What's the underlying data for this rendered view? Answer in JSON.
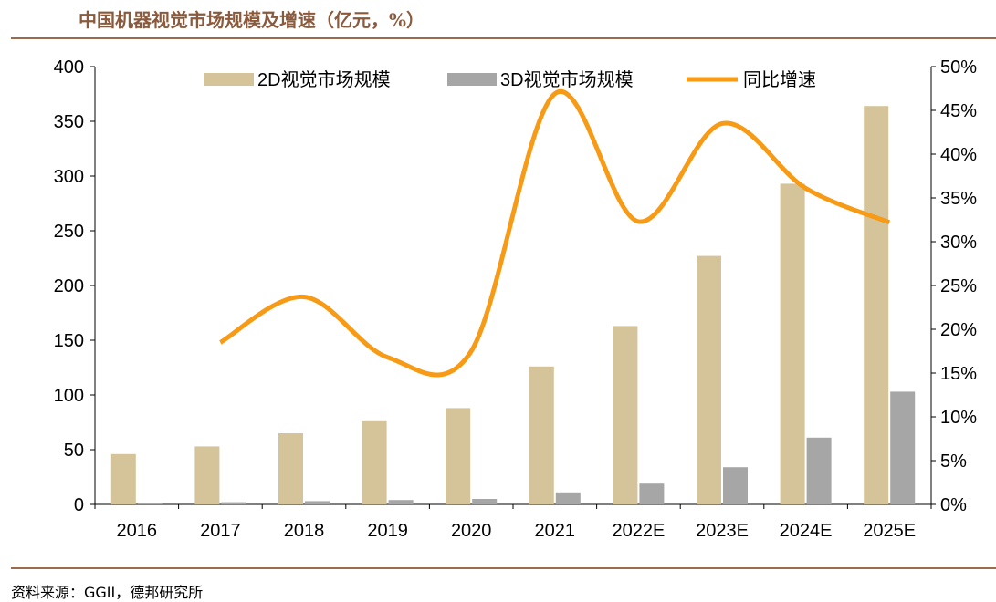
{
  "page": {
    "title": "中国机器视觉市场规模及增速（亿元，%）",
    "source": "资料来源：GGII，德邦研究所"
  },
  "colors": {
    "bar2d": "#D5C49A",
    "bar3d": "#A6A6A6",
    "growth": "#F79A15",
    "title": "#8B5A3C",
    "rule": "#9B6B4E"
  },
  "chart_data": {
    "type": "bar",
    "categories": [
      "2016",
      "2017",
      "2018",
      "2019",
      "2020",
      "2021",
      "2022E",
      "2023E",
      "2024E",
      "2025E"
    ],
    "series": [
      {
        "name": "2D视觉市场规模",
        "type": "bar",
        "axis": "left",
        "values": [
          46,
          53,
          65,
          76,
          88,
          126,
          163,
          227,
          293,
          364
        ]
      },
      {
        "name": "3D视觉市场规模",
        "type": "bar",
        "axis": "left",
        "values": [
          1,
          2,
          3,
          4,
          5,
          11,
          19,
          34,
          61,
          103
        ]
      },
      {
        "name": "同比增速",
        "type": "line",
        "axis": "right",
        "smooth": true,
        "values": [
          null,
          18.5,
          23.7,
          16.8,
          17.5,
          46.9,
          32.3,
          43.5,
          36.1,
          32.2
        ]
      }
    ],
    "y_left": {
      "min": 0,
      "max": 400,
      "ticks": [
        0,
        50,
        100,
        150,
        200,
        250,
        300,
        350,
        400
      ]
    },
    "y_right": {
      "min": 0,
      "max": 50,
      "ticks": [
        "0%",
        "5%",
        "10%",
        "15%",
        "20%",
        "25%",
        "30%",
        "35%",
        "40%",
        "45%",
        "50%"
      ]
    },
    "legend_position": "top",
    "grid": false
  }
}
